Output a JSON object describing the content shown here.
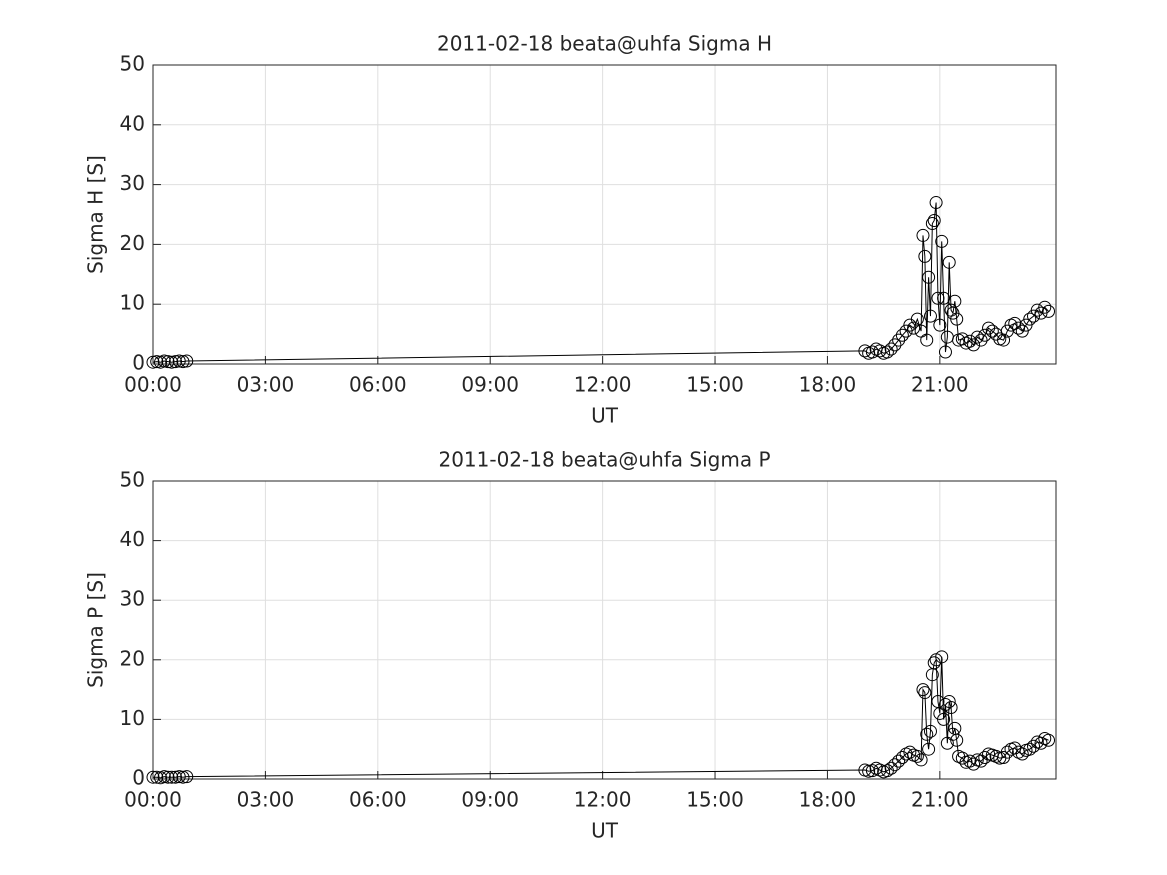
{
  "chart_data": [
    {
      "type": "line",
      "title": "2011-02-18  beata@uhfa Sigma H",
      "xlabel": "UT",
      "ylabel": "Sigma H [S]",
      "color": "#000000",
      "marker": "circle",
      "grid": true,
      "x": [
        0,
        0.1,
        0.2,
        0.3,
        0.4,
        0.5,
        0.6,
        0.7,
        0.8,
        0.9,
        19.0,
        19.1,
        19.2,
        19.3,
        19.4,
        19.5,
        19.6,
        19.7,
        19.8,
        19.9,
        20.0,
        20.1,
        20.2,
        20.3,
        20.4,
        20.5,
        20.55,
        20.6,
        20.65,
        20.7,
        20.75,
        20.8,
        20.85,
        20.9,
        20.95,
        21.0,
        21.05,
        21.1,
        21.15,
        21.2,
        21.25,
        21.3,
        21.35,
        21.4,
        21.45,
        21.5,
        21.6,
        21.7,
        21.8,
        21.9,
        22.0,
        22.1,
        22.2,
        22.3,
        22.4,
        22.5,
        22.6,
        22.7,
        22.8,
        22.9,
        23.0,
        23.1,
        23.2,
        23.3,
        23.4,
        23.5,
        23.6,
        23.7,
        23.8,
        23.9
      ],
      "values": [
        0.3,
        0.4,
        0.3,
        0.5,
        0.4,
        0.3,
        0.4,
        0.5,
        0.4,
        0.5,
        2.2,
        1.8,
        2.0,
        2.5,
        2.2,
        1.8,
        2.0,
        2.5,
        3.2,
        4.0,
        4.8,
        5.5,
        6.5,
        6.0,
        7.5,
        5.5,
        21.5,
        18,
        4,
        14.5,
        8,
        23.5,
        24,
        27,
        11,
        6.5,
        20.5,
        11,
        2,
        4.5,
        17,
        9,
        8.5,
        10.5,
        7.5,
        4.0,
        4.2,
        3.5,
        3.8,
        3.2,
        4.5,
        4.0,
        4.8,
        6.0,
        5.5,
        5.0,
        4.2,
        4.0,
        5.5,
        6.5,
        6.8,
        6.0,
        5.5,
        6.5,
        7.5,
        8.0,
        9.0,
        8.5,
        9.5,
        8.8
      ],
      "xlim": [
        0,
        24.1
      ],
      "xticks": [
        {
          "value": 0,
          "label": "00:00"
        },
        {
          "value": 3,
          "label": "03:00"
        },
        {
          "value": 6,
          "label": "06:00"
        },
        {
          "value": 9,
          "label": "09:00"
        },
        {
          "value": 12,
          "label": "12:00"
        },
        {
          "value": 15,
          "label": "15:00"
        },
        {
          "value": 18,
          "label": "18:00"
        },
        {
          "value": 21,
          "label": "21:00"
        }
      ],
      "ylim": [
        0,
        50
      ],
      "yticks": [
        0,
        10,
        20,
        30,
        40,
        50
      ]
    },
    {
      "type": "line",
      "title": "2011-02-18  beata@uhfa Sigma P",
      "xlabel": "UT",
      "ylabel": "Sigma P [S]",
      "color": "#000000",
      "marker": "circle",
      "grid": true,
      "x": [
        0,
        0.1,
        0.2,
        0.3,
        0.4,
        0.5,
        0.6,
        0.7,
        0.8,
        0.9,
        19.0,
        19.1,
        19.2,
        19.3,
        19.4,
        19.5,
        19.6,
        19.7,
        19.8,
        19.9,
        20.0,
        20.1,
        20.2,
        20.3,
        20.4,
        20.5,
        20.55,
        20.6,
        20.65,
        20.7,
        20.75,
        20.8,
        20.85,
        20.9,
        20.95,
        21.0,
        21.05,
        21.1,
        21.15,
        21.2,
        21.25,
        21.3,
        21.35,
        21.4,
        21.45,
        21.5,
        21.6,
        21.7,
        21.8,
        21.9,
        22.0,
        22.1,
        22.2,
        22.3,
        22.4,
        22.5,
        22.6,
        22.7,
        22.8,
        22.9,
        23.0,
        23.1,
        23.2,
        23.3,
        23.4,
        23.5,
        23.6,
        23.7,
        23.8,
        23.9
      ],
      "values": [
        0.3,
        0.3,
        0.2,
        0.4,
        0.3,
        0.3,
        0.3,
        0.4,
        0.3,
        0.4,
        1.5,
        1.3,
        1.4,
        1.8,
        1.5,
        1.2,
        1.4,
        1.8,
        2.4,
        3.0,
        3.6,
        4.2,
        4.5,
        4.0,
        3.8,
        3.2,
        15,
        14.5,
        7.5,
        5,
        8,
        17.5,
        19.5,
        20,
        13,
        11,
        20.5,
        10,
        12.5,
        6,
        13,
        12,
        7.5,
        8.5,
        6.5,
        3.8,
        3.5,
        2.8,
        3.0,
        2.5,
        3.2,
        3.0,
        3.6,
        4.2,
        4.0,
        3.8,
        3.5,
        3.6,
        4.5,
        5.0,
        5.2,
        4.5,
        4.2,
        4.8,
        5.0,
        5.5,
        6.2,
        6.0,
        6.8,
        6.5
      ],
      "xlim": [
        0,
        24.1
      ],
      "xticks": [
        {
          "value": 0,
          "label": "00:00"
        },
        {
          "value": 3,
          "label": "03:00"
        },
        {
          "value": 6,
          "label": "06:00"
        },
        {
          "value": 9,
          "label": "09:00"
        },
        {
          "value": 12,
          "label": "12:00"
        },
        {
          "value": 15,
          "label": "15:00"
        },
        {
          "value": 18,
          "label": "18:00"
        },
        {
          "value": 21,
          "label": "21:00"
        }
      ],
      "ylim": [
        0,
        50
      ],
      "yticks": [
        0,
        10,
        20,
        30,
        40,
        50
      ]
    }
  ]
}
